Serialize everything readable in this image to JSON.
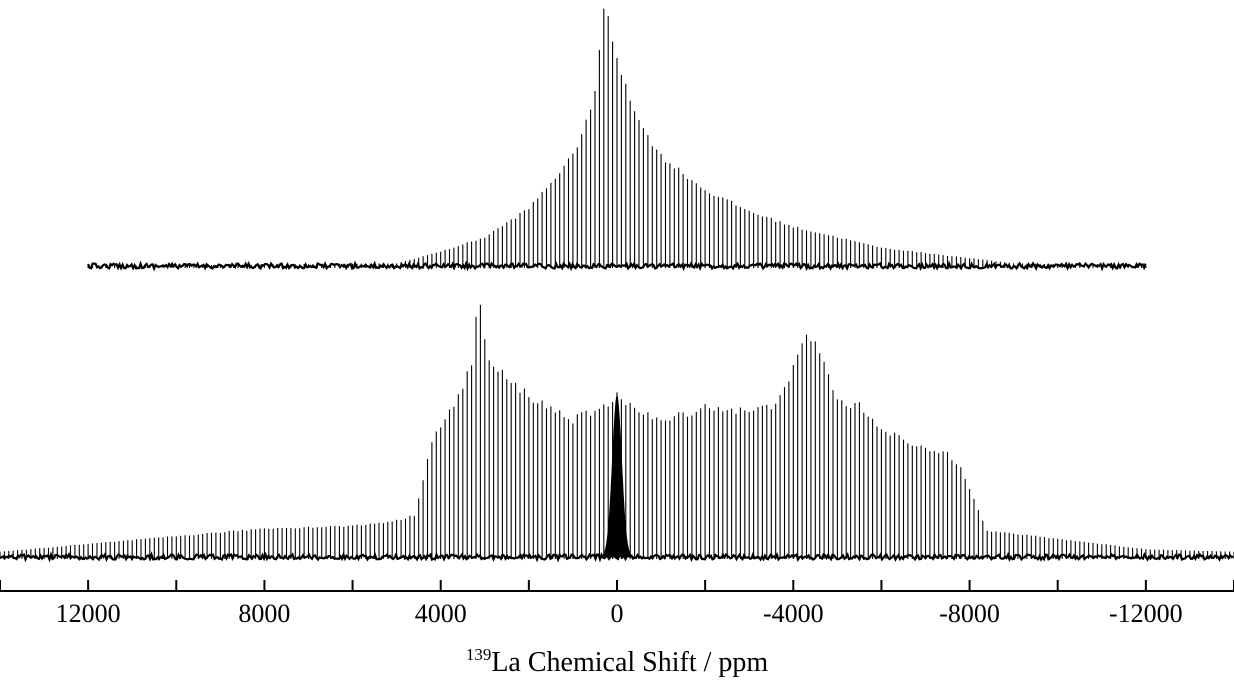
{
  "chart_data": {
    "type": "line",
    "title": "",
    "xlabel_sup": "139",
    "xlabel_main": "La Chemical  Shift / ppm",
    "x_reversed": true,
    "xlim": [
      14000,
      -14000
    ],
    "major_ticks": [
      12000,
      8000,
      4000,
      0,
      -4000,
      -8000,
      -12000
    ],
    "tick_labels": [
      "12000",
      "8000",
      "4000",
      "0",
      "-4000",
      "-8000",
      "-12000"
    ],
    "minor_ticks": [
      14000,
      10000,
      6000,
      2000,
      -2000,
      -6000,
      -10000,
      -14000
    ],
    "grid": false,
    "legend": "none",
    "line_color": "#000000",
    "series": [
      {
        "id": "top",
        "spike_spacing_ppm": 100,
        "x_range": [
          12000,
          -12000
        ],
        "envelope_x": [
          12000,
          5000,
          4000,
          3000,
          2000,
          1000,
          500,
          300,
          0,
          -500,
          -1000,
          -2000,
          -3000,
          -4000,
          -5000,
          -6000,
          -7000,
          -8000,
          -9000,
          -12000
        ],
        "envelope_y": [
          0,
          0.01,
          0.055,
          0.11,
          0.22,
          0.42,
          0.65,
          1.0,
          0.8,
          0.55,
          0.42,
          0.29,
          0.21,
          0.15,
          0.11,
          0.07,
          0.05,
          0.03,
          0.01,
          0
        ]
      },
      {
        "id": "bottom",
        "spike_spacing_ppm": 100,
        "x_range": [
          14000,
          -14000
        ],
        "envelope_x": [
          14000,
          12000,
          10000,
          8000,
          6000,
          5000,
          4600,
          4200,
          3700,
          3300,
          3150,
          2900,
          2400,
          1800,
          1000,
          500,
          200,
          0,
          -200,
          -500,
          -1000,
          -1500,
          -2000,
          -3000,
          -3500,
          -4000,
          -4300,
          -4600,
          -5000,
          -5500,
          -6000,
          -6800,
          -7500,
          -7800,
          -8000,
          -8400,
          -9000,
          -10000,
          -12000,
          -14000
        ],
        "envelope_y": [
          0.02,
          0.05,
          0.08,
          0.11,
          0.12,
          0.14,
          0.16,
          0.45,
          0.58,
          0.75,
          1.0,
          0.75,
          0.67,
          0.6,
          0.53,
          0.56,
          0.58,
          0.64,
          0.6,
          0.56,
          0.52,
          0.55,
          0.58,
          0.56,
          0.58,
          0.72,
          0.85,
          0.8,
          0.6,
          0.58,
          0.5,
          0.42,
          0.4,
          0.35,
          0.27,
          0.1,
          0.09,
          0.07,
          0.03,
          0.02
        ],
        "center_peak": {
          "x": 0,
          "width_ppm": 200,
          "height": 0.62
        }
      }
    ]
  }
}
